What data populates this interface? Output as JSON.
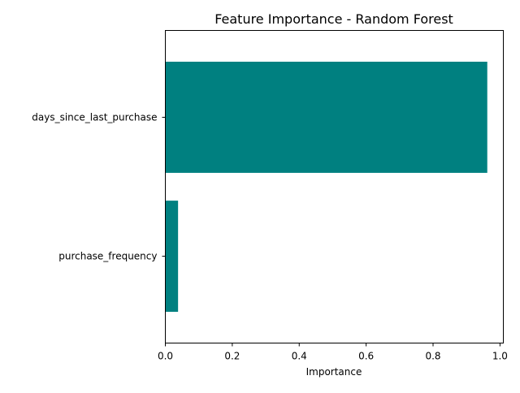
{
  "chart_data": {
    "type": "bar",
    "orientation": "horizontal",
    "title": "Feature Importance - Random Forest",
    "xlabel": "Importance",
    "ylabel": "",
    "categories": [
      "days_since_last_purchase",
      "purchase_frequency"
    ],
    "values": [
      0.962,
      0.038
    ],
    "xlim": [
      0,
      1.01
    ],
    "xticks": [
      0.0,
      0.2,
      0.4,
      0.6,
      0.8,
      1.0
    ],
    "xtick_labels": [
      "0.0",
      "0.2",
      "0.4",
      "0.6",
      "0.8",
      "1.0"
    ],
    "bar_color": "#008080",
    "grid": false,
    "legend": "none"
  }
}
